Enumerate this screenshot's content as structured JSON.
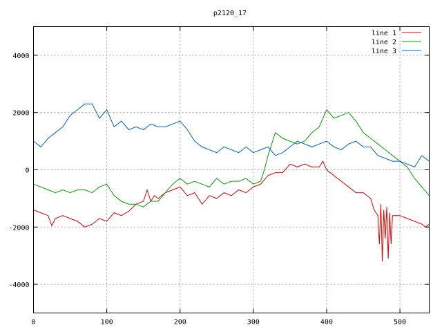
{
  "chart_data": {
    "type": "line",
    "title": "p2120_17",
    "xlabel": "",
    "ylabel": "",
    "xlim": [
      0,
      540
    ],
    "ylim": [
      -5000,
      5000
    ],
    "x_ticks": [
      0,
      100,
      200,
      300,
      400,
      500
    ],
    "y_ticks": [
      -4000,
      -2000,
      0,
      2000,
      4000
    ],
    "grid": true,
    "legend_position": "top-right",
    "series": [
      {
        "name": "line 1",
        "color": "#e00000",
        "x": [
          0,
          10,
          20,
          25,
          30,
          40,
          50,
          60,
          70,
          80,
          90,
          100,
          110,
          120,
          130,
          140,
          150,
          155,
          160,
          165,
          170,
          180,
          190,
          200,
          210,
          220,
          230,
          240,
          250,
          260,
          270,
          280,
          290,
          300,
          310,
          320,
          330,
          340,
          350,
          360,
          370,
          380,
          390,
          395,
          400,
          410,
          420,
          430,
          440,
          450,
          460,
          465,
          470,
          472,
          474,
          476,
          478,
          480,
          482,
          484,
          486,
          488,
          490,
          495,
          500,
          510,
          520,
          530,
          535,
          540
        ],
        "y": [
          -1400,
          -1500,
          -1600,
          -1950,
          -1700,
          -1600,
          -1700,
          -1800,
          -2000,
          -1900,
          -1700,
          -1800,
          -1500,
          -1600,
          -1450,
          -1200,
          -1100,
          -700,
          -1100,
          -900,
          -1000,
          -800,
          -700,
          -600,
          -900,
          -800,
          -1200,
          -900,
          -1000,
          -800,
          -900,
          -700,
          -800,
          -600,
          -500,
          -200,
          -100,
          -100,
          200,
          100,
          200,
          100,
          100,
          300,
          0,
          -200,
          -400,
          -600,
          -800,
          -800,
          -1000,
          -1400,
          -1600,
          -2600,
          -1200,
          -3200,
          -1400,
          -2400,
          -1300,
          -3100,
          -1500,
          -2600,
          -1600,
          -1600,
          -1600,
          -1700,
          -1800,
          -1900,
          -2000,
          -1900
        ]
      },
      {
        "name": "line 2",
        "color": "#00a000",
        "x": [
          0,
          10,
          20,
          30,
          40,
          50,
          60,
          70,
          80,
          90,
          100,
          110,
          120,
          130,
          140,
          150,
          160,
          170,
          180,
          190,
          200,
          210,
          220,
          230,
          240,
          250,
          260,
          270,
          280,
          290,
          300,
          310,
          315,
          320,
          330,
          340,
          350,
          360,
          370,
          380,
          390,
          400,
          410,
          420,
          430,
          440,
          450,
          460,
          470,
          480,
          490,
          500,
          510,
          520,
          530,
          540
        ],
        "y": [
          -500,
          -600,
          -700,
          -800,
          -700,
          -800,
          -700,
          -700,
          -800,
          -600,
          -500,
          -900,
          -1100,
          -1200,
          -1200,
          -1300,
          -1100,
          -1100,
          -800,
          -500,
          -300,
          -500,
          -400,
          -500,
          -600,
          -300,
          -500,
          -400,
          -400,
          -300,
          -500,
          -400,
          0,
          500,
          1300,
          1100,
          1000,
          900,
          1000,
          1300,
          1500,
          2100,
          1800,
          1900,
          2000,
          1700,
          1300,
          1100,
          900,
          700,
          500,
          300,
          100,
          -300,
          -600,
          -900
        ]
      },
      {
        "name": "line 3",
        "color": "#0060d0",
        "x": [
          0,
          10,
          20,
          30,
          40,
          50,
          60,
          70,
          80,
          90,
          100,
          110,
          120,
          130,
          140,
          150,
          160,
          170,
          180,
          190,
          200,
          210,
          220,
          230,
          240,
          250,
          260,
          270,
          280,
          290,
          300,
          310,
          320,
          330,
          340,
          350,
          360,
          370,
          380,
          390,
          400,
          410,
          420,
          430,
          440,
          450,
          460,
          470,
          480,
          490,
          500,
          510,
          520,
          530,
          540
        ],
        "y": [
          1000,
          800,
          1100,
          1300,
          1500,
          1900,
          2100,
          2300,
          2300,
          1800,
          2100,
          1500,
          1700,
          1400,
          1500,
          1400,
          1600,
          1500,
          1500,
          1600,
          1700,
          1400,
          1000,
          800,
          700,
          600,
          800,
          700,
          600,
          800,
          600,
          700,
          800,
          500,
          600,
          800,
          1000,
          900,
          800,
          900,
          1000,
          800,
          700,
          900,
          1000,
          800,
          800,
          500,
          400,
          300,
          300,
          200,
          100,
          500,
          300
        ]
      }
    ]
  }
}
